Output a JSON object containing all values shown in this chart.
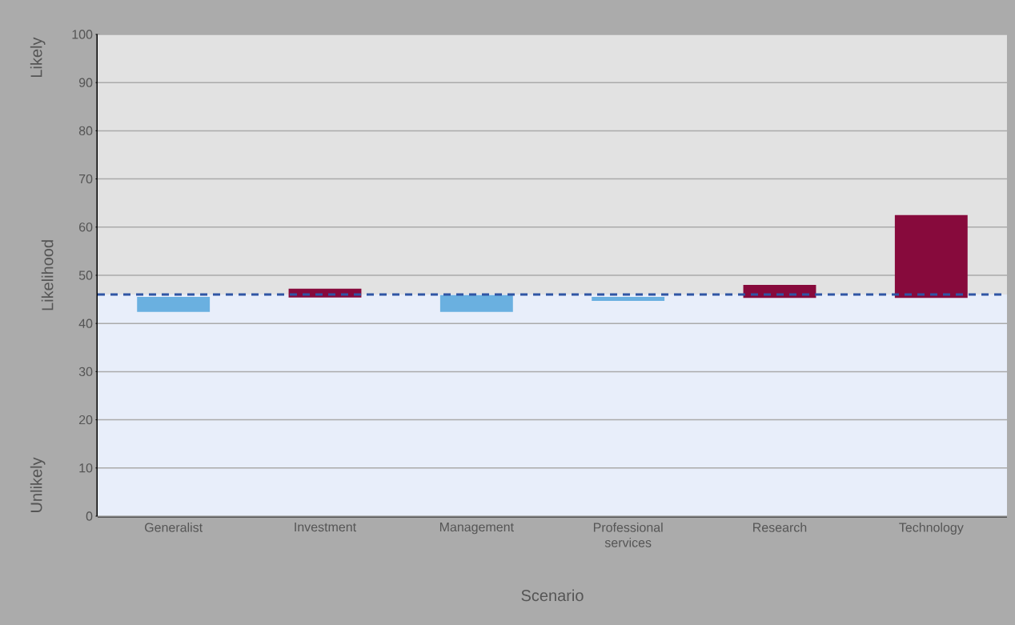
{
  "chart_data": {
    "type": "bar",
    "xlabel": "Scenario",
    "ylabel": "Likelihood",
    "annotations": [
      "Likely",
      "Unlikely"
    ],
    "categories": [
      "Generalist",
      "Investment",
      "Management",
      "Professional services",
      "Research",
      "Technology"
    ],
    "base": [
      42.4,
      45.4,
      42.4,
      44.7,
      45.3,
      45.3
    ],
    "values": [
      3.1,
      1.8,
      3.5,
      0.8,
      2.7,
      17.2
    ],
    "colors": [
      "#6ab0e0",
      "#870a3c",
      "#6ab0e0",
      "#6ab0e0",
      "#870a3c",
      "#870a3c"
    ],
    "ylim": [
      0,
      100
    ],
    "yticks": [
      0,
      10,
      20,
      30,
      40,
      50,
      60,
      70,
      80,
      90,
      100
    ],
    "grid": "y",
    "bands": [
      {
        "axis": "y",
        "from": 0,
        "to": 46,
        "color": "#e8eefa"
      },
      {
        "axis": "y",
        "from": 46,
        "to": 100,
        "color": "#e2e2e2"
      }
    ],
    "ref_lines": [
      {
        "axis": "y",
        "value": 46,
        "color": "#2f55a4",
        "line_style": "dashed"
      }
    ]
  }
}
